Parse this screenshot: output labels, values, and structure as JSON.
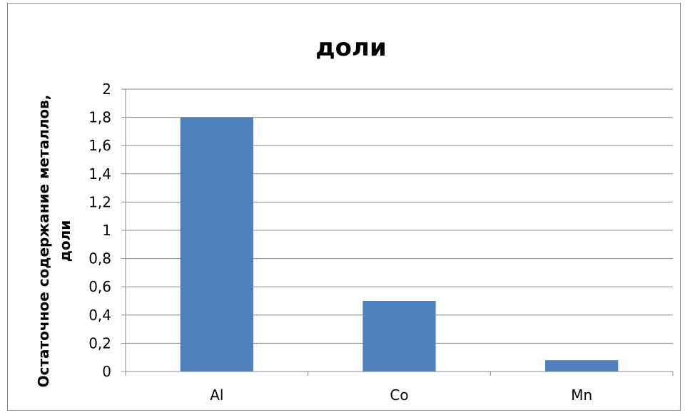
{
  "chart_data": {
    "type": "bar",
    "title": "доли",
    "xlabel": "",
    "ylabel_lines": [
      "Остаточное содержание металлов,",
      "доли"
    ],
    "categories": [
      "Al",
      "Co",
      "Mn"
    ],
    "values": [
      1.8,
      0.5,
      0.08
    ],
    "ylim": [
      0,
      2
    ],
    "y_ticks": [
      "0",
      "0,2",
      "0,4",
      "0,6",
      "0,8",
      "1",
      "1,2",
      "1,4",
      "1,6",
      "1,8",
      "2"
    ],
    "grid": true,
    "legend": "none",
    "bar_color": "#4F81BD"
  }
}
